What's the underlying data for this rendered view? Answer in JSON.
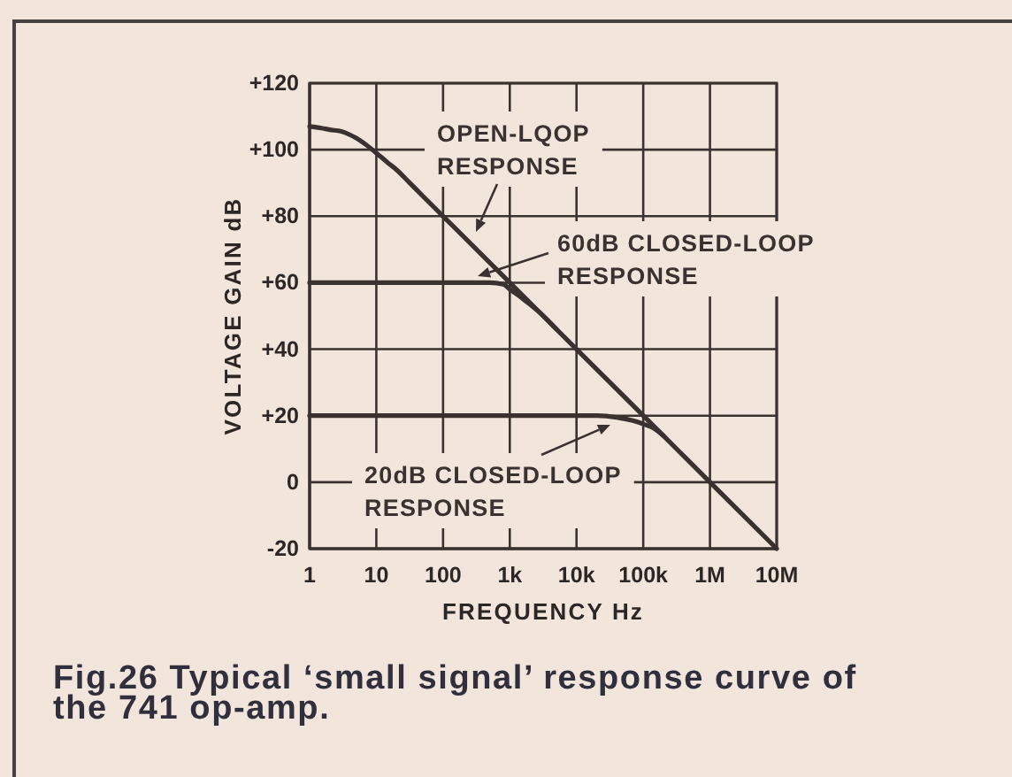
{
  "chart_data": {
    "type": "line",
    "xlabel": "FREQUENCY Hz",
    "ylabel": "VOLTAGE GAIN dB",
    "annotations": [
      "Fig.26 Typical ‘small signal’ response curve of the 741 op-amp."
    ],
    "log": "x",
    "grid": true,
    "xlim": [
      1,
      10000000
    ],
    "ylim": [
      -20,
      120
    ],
    "xticks": [
      1,
      10,
      100,
      {
        "value": 1000,
        "label": "1k"
      },
      {
        "value": 10000,
        "label": "10k"
      },
      {
        "value": 100000,
        "label": "100k"
      },
      {
        "value": 1000000,
        "label": "1M"
      },
      {
        "value": 10000000,
        "label": "10M"
      }
    ],
    "yticks": [
      -20,
      0,
      {
        "value": 20,
        "label": "+20"
      },
      {
        "value": 40,
        "label": "+40"
      },
      {
        "value": 60,
        "label": "+60"
      },
      {
        "value": 80,
        "label": "+80"
      },
      {
        "value": 100,
        "label": "+100"
      },
      {
        "value": 120,
        "label": "+120"
      }
    ],
    "series": [
      {
        "name": "OPEN-LQOP RESPONSE",
        "color": "#3a3230",
        "x": [
          1,
          1.5,
          2,
          3,
          4,
          5,
          7,
          10,
          15,
          20,
          30,
          50,
          100,
          1000,
          10000,
          100000,
          1000000,
          10000000
        ],
        "values": [
          107,
          106.5,
          106,
          105.5,
          104.5,
          103.5,
          101.5,
          99,
          96,
          94,
          90.5,
          86,
          80,
          60,
          40,
          20,
          0,
          -20
        ]
      },
      {
        "name": "60dB CLOSED-LOOP RESPONSE",
        "color": "#3a3230",
        "x": [
          1,
          500,
          800,
          1000,
          1500,
          2000,
          3000,
          5000
        ],
        "values": [
          60,
          60,
          59.5,
          58,
          55.5,
          53.5,
          50.5,
          46
        ]
      },
      {
        "name": "20dB CLOSED-LOOP RESPONSE",
        "color": "#3a3230",
        "x": [
          1,
          20000,
          40000,
          70000,
          100000,
          150000,
          200000
        ],
        "values": [
          20,
          20,
          19.5,
          18.5,
          17.5,
          16,
          14
        ]
      }
    ]
  }
}
